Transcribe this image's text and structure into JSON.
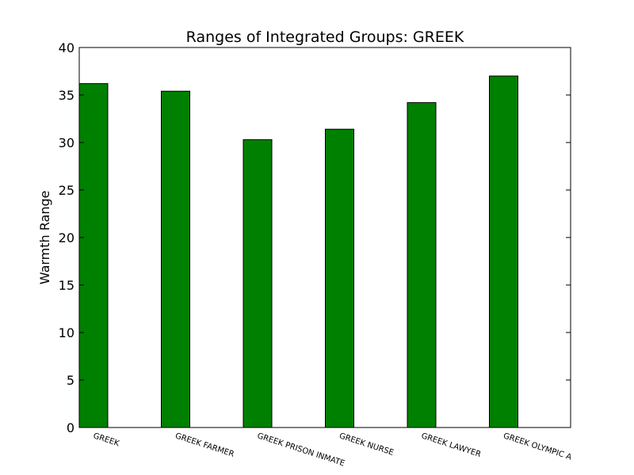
{
  "chart_data": {
    "type": "bar",
    "title": "Ranges of Integrated Groups: GREEK",
    "xlabel": "",
    "ylabel": "Warmth Range",
    "categories": [
      "GREEK",
      "GREEK FARMER",
      "GREEK PRISON INMATE",
      "GREEK NURSE",
      "GREEK LAWYER",
      "GREEK OLYMPIC ATHLETE"
    ],
    "values": [
      36.2,
      35.4,
      30.3,
      31.4,
      34.2,
      37.0
    ],
    "ylim": [
      0,
      40
    ],
    "yticks": [
      "0",
      "5",
      "10",
      "15",
      "20",
      "25",
      "30",
      "35",
      "40"
    ],
    "bar_color": "#008000",
    "grid": false,
    "legend": "none"
  }
}
